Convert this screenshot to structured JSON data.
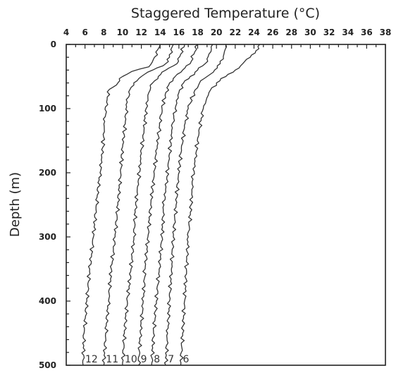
{
  "chart_data": {
    "type": "line",
    "title": "Staggered Temperature (°C)",
    "xlabel": "Staggered Temperature (°C)",
    "ylabel": "Depth (m)",
    "x_axis_position": "top",
    "y_inverted": true,
    "xlim": [
      4,
      38
    ],
    "ylim": [
      0,
      500
    ],
    "xticks": [
      4,
      6,
      8,
      10,
      12,
      14,
      16,
      18,
      20,
      22,
      24,
      26,
      28,
      30,
      32,
      34,
      36,
      38
    ],
    "yticks": [
      0,
      100,
      200,
      300,
      400,
      500
    ],
    "grid": false,
    "legend": "inline-bottom",
    "series": [
      {
        "name": "12",
        "points": [
          [
            14.0,
            0
          ],
          [
            13.4,
            20
          ],
          [
            12.8,
            35
          ],
          [
            11.0,
            42
          ],
          [
            10.0,
            50
          ],
          [
            9.5,
            60
          ],
          [
            8.6,
            70
          ],
          [
            8.3,
            90
          ],
          [
            8.1,
            120
          ],
          [
            7.9,
            160
          ],
          [
            7.6,
            200
          ],
          [
            7.2,
            250
          ],
          [
            6.9,
            300
          ],
          [
            6.5,
            350
          ],
          [
            6.2,
            400
          ],
          [
            5.9,
            450
          ],
          [
            5.8,
            500
          ]
        ]
      },
      {
        "name": "11",
        "points": [
          [
            15.4,
            0
          ],
          [
            15.0,
            20
          ],
          [
            14.6,
            30
          ],
          [
            13.2,
            40
          ],
          [
            12.0,
            50
          ],
          [
            11.2,
            60
          ],
          [
            10.8,
            70
          ],
          [
            10.5,
            90
          ],
          [
            10.3,
            120
          ],
          [
            10.0,
            160
          ],
          [
            9.8,
            200
          ],
          [
            9.5,
            250
          ],
          [
            9.2,
            300
          ],
          [
            8.8,
            350
          ],
          [
            8.5,
            400
          ],
          [
            8.2,
            450
          ],
          [
            8.0,
            500
          ]
        ]
      },
      {
        "name": "10",
        "points": [
          [
            16.6,
            0
          ],
          [
            16.2,
            15
          ],
          [
            15.8,
            30
          ],
          [
            14.6,
            40
          ],
          [
            13.8,
            50
          ],
          [
            13.2,
            60
          ],
          [
            12.8,
            75
          ],
          [
            12.5,
            100
          ],
          [
            12.3,
            130
          ],
          [
            12.0,
            170
          ],
          [
            11.7,
            210
          ],
          [
            11.4,
            250
          ],
          [
            11.2,
            300
          ],
          [
            10.9,
            350
          ],
          [
            10.5,
            400
          ],
          [
            10.2,
            450
          ],
          [
            10.0,
            500
          ]
        ]
      },
      {
        "name": "9",
        "points": [
          [
            18.0,
            0
          ],
          [
            17.6,
            15
          ],
          [
            17.2,
            30
          ],
          [
            16.4,
            40
          ],
          [
            15.6,
            50
          ],
          [
            15.0,
            60
          ],
          [
            14.6,
            75
          ],
          [
            14.2,
            100
          ],
          [
            13.9,
            130
          ],
          [
            13.6,
            170
          ],
          [
            13.3,
            210
          ],
          [
            13.0,
            250
          ],
          [
            12.7,
            300
          ],
          [
            12.4,
            350
          ],
          [
            12.2,
            400
          ],
          [
            11.9,
            450
          ],
          [
            11.7,
            500
          ]
        ]
      },
      {
        "name": "8",
        "points": [
          [
            19.6,
            0
          ],
          [
            19.2,
            15
          ],
          [
            18.8,
            30
          ],
          [
            18.0,
            40
          ],
          [
            17.2,
            50
          ],
          [
            16.5,
            60
          ],
          [
            16.0,
            75
          ],
          [
            15.6,
            100
          ],
          [
            15.3,
            130
          ],
          [
            15.0,
            170
          ],
          [
            14.7,
            210
          ],
          [
            14.4,
            250
          ],
          [
            14.2,
            300
          ],
          [
            13.9,
            350
          ],
          [
            13.6,
            400
          ],
          [
            13.3,
            450
          ],
          [
            13.1,
            500
          ]
        ]
      },
      {
        "name": "7",
        "points": [
          [
            21.0,
            0
          ],
          [
            20.8,
            15
          ],
          [
            20.4,
            30
          ],
          [
            19.8,
            40
          ],
          [
            19.0,
            50
          ],
          [
            18.2,
            60
          ],
          [
            17.6,
            75
          ],
          [
            17.0,
            100
          ],
          [
            16.6,
            130
          ],
          [
            16.2,
            170
          ],
          [
            15.9,
            210
          ],
          [
            15.7,
            250
          ],
          [
            15.4,
            300
          ],
          [
            15.2,
            350
          ],
          [
            15.0,
            400
          ],
          [
            14.8,
            450
          ],
          [
            14.6,
            500
          ]
        ]
      },
      {
        "name": "6",
        "points": [
          [
            24.6,
            0
          ],
          [
            24.2,
            10
          ],
          [
            23.6,
            20
          ],
          [
            22.8,
            30
          ],
          [
            22.0,
            40
          ],
          [
            21.0,
            50
          ],
          [
            20.0,
            60
          ],
          [
            19.2,
            75
          ],
          [
            18.6,
            100
          ],
          [
            18.2,
            130
          ],
          [
            17.8,
            170
          ],
          [
            17.5,
            210
          ],
          [
            17.3,
            250
          ],
          [
            17.0,
            300
          ],
          [
            16.8,
            350
          ],
          [
            16.6,
            400
          ],
          [
            16.4,
            450
          ],
          [
            16.2,
            500
          ]
        ]
      }
    ]
  }
}
